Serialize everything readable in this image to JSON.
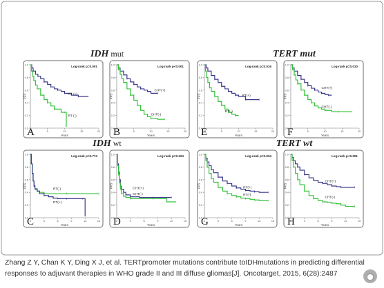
{
  "figure": {
    "caption_line1": "Zhang Z Y, Chan K Y, Ding X J, et al. TERTpromoter mutations contribute toIDHmutations in predicting differential",
    "caption_line2": "responses to adjuvant therapies in WHO grade II and III diffuse gliomas[J]. Oncotarget, 2015, 6(28):2487",
    "watermark_text": "",
    "colors": {
      "series_pos": "#38388a",
      "series_neg": "#33c03a",
      "frame_border": "#6a6a6a",
      "title": "#222222"
    }
  },
  "group_titles": [
    {
      "id": "idh-mut",
      "base": "IDH",
      "suffix": " mut"
    },
    {
      "id": "tert-mut",
      "base": "TERT",
      "suffix": " mut"
    },
    {
      "id": "idh-wt",
      "base": "IDH",
      "suffix": " wt"
    },
    {
      "id": "tert-wt",
      "base": "TERT",
      "suffix": " wt"
    }
  ],
  "chart_data": [
    {
      "panel": "A",
      "type": "line",
      "ylabel": "PFS",
      "xlabel": "Years",
      "annotation": "Log-rank p=0.001",
      "xlim": [
        0,
        20
      ],
      "ylim": [
        0,
        1
      ],
      "xticks": [
        "0",
        "5",
        "10",
        "15",
        "20"
      ],
      "yticks": [
        "0.0",
        "0.2",
        "0.4",
        "0.6",
        "0.8",
        "1.0"
      ],
      "series": [
        {
          "name": "RT (+)",
          "color": "#38388a",
          "x": [
            0,
            0.4,
            0.8,
            1.5,
            2.2,
            3,
            4,
            5,
            6,
            7,
            8,
            9,
            10,
            12,
            14,
            17
          ],
          "y": [
            1.0,
            0.95,
            0.9,
            0.85,
            0.82,
            0.78,
            0.73,
            0.69,
            0.65,
            0.62,
            0.6,
            0.58,
            0.55,
            0.52,
            0.5,
            0.5
          ]
        },
        {
          "name": "RT (-)",
          "color": "#33c03a",
          "x": [
            0,
            0.3,
            0.6,
            1,
            1.5,
            2,
            3,
            4,
            5,
            6,
            7,
            9,
            10,
            10.5
          ],
          "y": [
            1.0,
            0.9,
            0.82,
            0.75,
            0.68,
            0.62,
            0.52,
            0.45,
            0.4,
            0.35,
            0.3,
            0.25,
            0.25,
            0.02
          ]
        }
      ]
    },
    {
      "panel": "B",
      "type": "line",
      "ylabel": "PFS",
      "xlabel": "Years",
      "annotation": "Log-rank p<0.001",
      "xlim": [
        0,
        20
      ],
      "ylim": [
        0,
        1
      ],
      "xticks": [
        "0",
        "5",
        "10",
        "15",
        "20"
      ],
      "yticks": [
        "0.0",
        "0.2",
        "0.4",
        "0.6",
        "0.8",
        "1.0"
      ],
      "series": [
        {
          "name": "CHT(+)",
          "color": "#38388a",
          "x": [
            0,
            0.5,
            1,
            2,
            3,
            4,
            5,
            6,
            7,
            8,
            9,
            10,
            12
          ],
          "y": [
            1.0,
            0.95,
            0.9,
            0.84,
            0.78,
            0.73,
            0.69,
            0.65,
            0.62,
            0.6,
            0.58,
            0.55,
            0.55
          ]
        },
        {
          "name": "CHT(-)",
          "color": "#33c03a",
          "x": [
            0,
            0.5,
            1,
            1.5,
            2,
            3,
            4,
            5,
            6,
            7,
            8,
            9,
            10,
            12,
            14
          ],
          "y": [
            1.0,
            0.92,
            0.85,
            0.78,
            0.72,
            0.62,
            0.52,
            0.44,
            0.36,
            0.28,
            0.22,
            0.18,
            0.15,
            0.14,
            0.14
          ]
        }
      ]
    },
    {
      "panel": "E",
      "type": "line",
      "ylabel": "PFS",
      "xlabel": "Years",
      "annotation": "Log-rank p=0.016",
      "xlim": [
        0,
        20
      ],
      "ylim": [
        0,
        1
      ],
      "xticks": [
        "0",
        "5",
        "10",
        "15",
        "20"
      ],
      "yticks": [
        "0.0",
        "0.2",
        "0.4",
        "0.6",
        "0.8",
        "1.0"
      ],
      "series": [
        {
          "name": "RT(+)",
          "color": "#38388a",
          "x": [
            0,
            0.5,
            1,
            2,
            3,
            4,
            5,
            6,
            7,
            8,
            9,
            10,
            12,
            14,
            16
          ],
          "y": [
            1.0,
            0.95,
            0.9,
            0.83,
            0.77,
            0.72,
            0.66,
            0.62,
            0.58,
            0.55,
            0.52,
            0.5,
            0.45,
            0.45,
            0.45
          ]
        },
        {
          "name": "RT(-)",
          "color": "#33c03a",
          "x": [
            0,
            0.3,
            0.6,
            1,
            1.5,
            2,
            3,
            4,
            5,
            6,
            7,
            8,
            9,
            10
          ],
          "y": [
            1.0,
            0.9,
            0.8,
            0.72,
            0.64,
            0.58,
            0.5,
            0.42,
            0.36,
            0.3,
            0.25,
            0.22,
            0.2,
            0.2
          ]
        }
      ]
    },
    {
      "panel": "F",
      "type": "line",
      "ylabel": "PFS",
      "xlabel": "Years",
      "annotation": "Log-rank p=0.010",
      "xlim": [
        0,
        20
      ],
      "ylim": [
        0,
        1
      ],
      "xticks": [
        "0",
        "5",
        "10",
        "15",
        "20"
      ],
      "yticks": [
        "0.0",
        "0.2",
        "0.4",
        "0.6",
        "0.8",
        "1.0"
      ],
      "series": [
        {
          "name": "CHT(+)",
          "color": "#38388a",
          "x": [
            0,
            0.5,
            1,
            2,
            3,
            4,
            5,
            6,
            7,
            8,
            9,
            10,
            11,
            12
          ],
          "y": [
            1.0,
            0.95,
            0.9,
            0.83,
            0.77,
            0.72,
            0.67,
            0.63,
            0.6,
            0.57,
            0.55,
            0.53,
            0.52,
            0.52
          ]
        },
        {
          "name": "CHT(-)",
          "color": "#33c03a",
          "x": [
            0,
            0.5,
            1,
            1.5,
            2,
            3,
            4,
            5,
            6,
            7,
            8,
            9,
            10,
            12,
            14,
            18
          ],
          "y": [
            1.0,
            0.92,
            0.84,
            0.76,
            0.7,
            0.6,
            0.52,
            0.45,
            0.4,
            0.35,
            0.32,
            0.3,
            0.28,
            0.26,
            0.26,
            0.26
          ]
        }
      ]
    },
    {
      "panel": "C",
      "type": "line",
      "ylabel": "PFS",
      "xlabel": "Years",
      "annotation": "Log-rank p=0.774",
      "xlim": [
        0,
        15
      ],
      "ylim": [
        0,
        1
      ],
      "xticks": [
        "0",
        "3",
        "6",
        "9",
        "12",
        "15"
      ],
      "yticks": [
        "0.0",
        "0.2",
        "0.4",
        "0.6",
        "0.8",
        "1.0"
      ],
      "series": [
        {
          "name": "RT(-)",
          "color": "#33c03a",
          "x": [
            0,
            0.2,
            0.4,
            0.6,
            0.8,
            1,
            1.5,
            2,
            3,
            5,
            8,
            10,
            15
          ],
          "y": [
            1.0,
            0.85,
            0.7,
            0.58,
            0.5,
            0.46,
            0.42,
            0.4,
            0.38,
            0.38,
            0.38,
            0.38,
            0.38
          ]
        },
        {
          "name": "RT(+)",
          "color": "#38388a",
          "x": [
            0,
            0.2,
            0.4,
            0.6,
            0.8,
            1,
            1.5,
            2,
            3,
            4,
            5,
            6,
            8,
            10,
            11.5,
            12
          ],
          "y": [
            1.0,
            0.85,
            0.7,
            0.58,
            0.5,
            0.45,
            0.42,
            0.38,
            0.35,
            0.33,
            0.31,
            0.3,
            0.3,
            0.3,
            0.3,
            0.02
          ]
        }
      ]
    },
    {
      "panel": "D",
      "type": "line",
      "ylabel": "PFS",
      "xlabel": "Years",
      "annotation": "Log-rank p=0.224",
      "xlim": [
        0,
        15
      ],
      "ylim": [
        0,
        1
      ],
      "xticks": [
        "0",
        "3",
        "6",
        "9",
        "12",
        "15"
      ],
      "yticks": [
        "0.0",
        "0.2",
        "0.4",
        "0.6",
        "0.8",
        "1.0"
      ],
      "series": [
        {
          "name": "CHT(+)",
          "color": "#38388a",
          "x": [
            0,
            0.2,
            0.4,
            0.6,
            0.8,
            1,
            1.5,
            2,
            3,
            5,
            8,
            10,
            12
          ],
          "y": [
            1.0,
            0.85,
            0.72,
            0.6,
            0.5,
            0.45,
            0.4,
            0.36,
            0.33,
            0.32,
            0.32,
            0.32,
            0.32
          ]
        },
        {
          "name": "CHT(-)",
          "color": "#33c03a",
          "x": [
            0,
            0.2,
            0.4,
            0.6,
            0.8,
            1,
            1.5,
            2,
            3,
            5,
            8,
            10,
            11,
            13
          ],
          "y": [
            1.0,
            0.82,
            0.68,
            0.55,
            0.45,
            0.38,
            0.34,
            0.32,
            0.3,
            0.3,
            0.3,
            0.3,
            0.25,
            0.25
          ]
        }
      ]
    },
    {
      "panel": "G",
      "type": "line",
      "ylabel": "PFS",
      "xlabel": "Years",
      "annotation": "Log-rank p=0.034",
      "xlim": [
        0,
        15
      ],
      "ylim": [
        0,
        1
      ],
      "xticks": [
        "0",
        "3",
        "6",
        "9",
        "12",
        "15"
      ],
      "yticks": [
        "0.0",
        "0.2",
        "0.4",
        "0.6",
        "0.8",
        "1.0"
      ],
      "series": [
        {
          "name": "RT(+)",
          "color": "#38388a",
          "x": [
            0,
            0.3,
            0.6,
            1,
            1.5,
            2,
            3,
            4,
            5,
            6,
            7,
            8,
            9,
            10,
            11,
            12,
            14
          ],
          "y": [
            1.0,
            0.94,
            0.88,
            0.82,
            0.76,
            0.71,
            0.64,
            0.58,
            0.54,
            0.5,
            0.47,
            0.45,
            0.43,
            0.42,
            0.41,
            0.4,
            0.4
          ]
        },
        {
          "name": "RT(-)",
          "color": "#33c03a",
          "x": [
            0,
            0.3,
            0.6,
            1,
            1.5,
            2,
            3,
            4,
            5,
            6,
            7,
            8,
            9,
            10,
            11,
            12,
            14
          ],
          "y": [
            1.0,
            0.9,
            0.8,
            0.7,
            0.62,
            0.56,
            0.48,
            0.42,
            0.38,
            0.35,
            0.33,
            0.31,
            0.3,
            0.29,
            0.28,
            0.27,
            0.27
          ]
        }
      ]
    },
    {
      "panel": "H",
      "type": "line",
      "ylabel": "PFS",
      "xlabel": "Years",
      "annotation": "Log-rank p<0.001",
      "xlim": [
        0,
        15
      ],
      "ylim": [
        0,
        1
      ],
      "xticks": [
        "0",
        "3",
        "6",
        "9",
        "12",
        "15"
      ],
      "yticks": [
        "0.0",
        "0.2",
        "0.4",
        "0.6",
        "0.8",
        "1.0"
      ],
      "series": [
        {
          "name": "CHT(+)",
          "color": "#38388a",
          "x": [
            0,
            0.3,
            0.6,
            1,
            1.5,
            2,
            3,
            4,
            5,
            6,
            7,
            8,
            9,
            10,
            11,
            12,
            14
          ],
          "y": [
            1.0,
            0.95,
            0.9,
            0.85,
            0.8,
            0.75,
            0.68,
            0.63,
            0.59,
            0.56,
            0.54,
            0.52,
            0.5,
            0.49,
            0.48,
            0.48,
            0.48
          ]
        },
        {
          "name": "CHT(-)",
          "color": "#33c03a",
          "x": [
            0,
            0.3,
            0.6,
            1,
            1.5,
            2,
            3,
            4,
            5,
            6,
            7,
            8,
            9,
            10,
            11,
            12,
            14
          ],
          "y": [
            1.0,
            0.9,
            0.8,
            0.7,
            0.6,
            0.52,
            0.42,
            0.35,
            0.3,
            0.27,
            0.25,
            0.24,
            0.23,
            0.22,
            0.2,
            0.18,
            0.18
          ]
        }
      ]
    }
  ]
}
